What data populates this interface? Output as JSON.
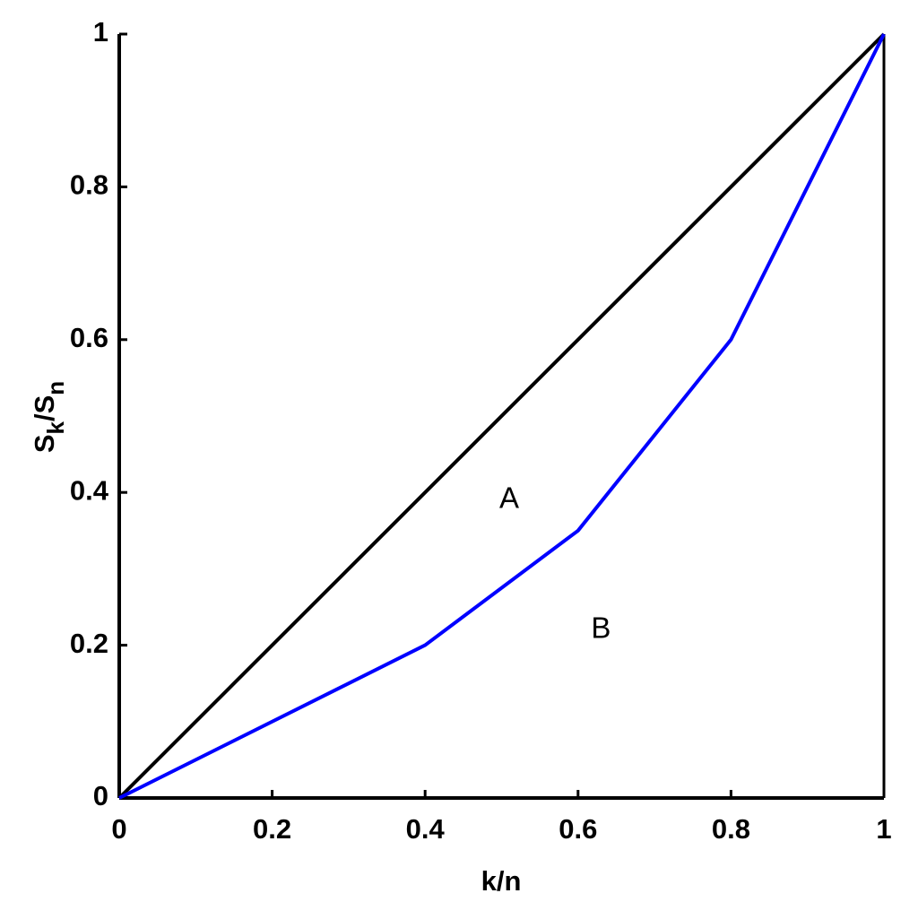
{
  "chart_data": {
    "type": "line",
    "x_label": "k/n",
    "y_label": [
      {
        "text": "S"
      },
      {
        "text": "k",
        "sub": true
      },
      {
        "text": "/S"
      },
      {
        "text": "n",
        "sub": true
      }
    ],
    "series": [
      {
        "color": "#000000",
        "x": [
          0,
          1
        ],
        "values": [
          0,
          1
        ]
      },
      {
        "color": "#0000ff",
        "x": [
          0,
          0.4,
          0.6,
          0.8,
          1
        ],
        "values": [
          0,
          0.2,
          0.35,
          0.6,
          1
        ]
      }
    ],
    "annotations": [
      {
        "text": "A",
        "x": 0.51,
        "y": 0.39
      },
      {
        "text": "B",
        "x": 0.63,
        "y": 0.22
      }
    ],
    "xlim": [
      0,
      1
    ],
    "ylim": [
      0,
      1
    ],
    "xticks": [
      0,
      0.2,
      0.4,
      0.6,
      0.8,
      1
    ],
    "yticks": [
      0,
      0.2,
      0.4,
      0.6,
      0.8,
      1
    ]
  }
}
